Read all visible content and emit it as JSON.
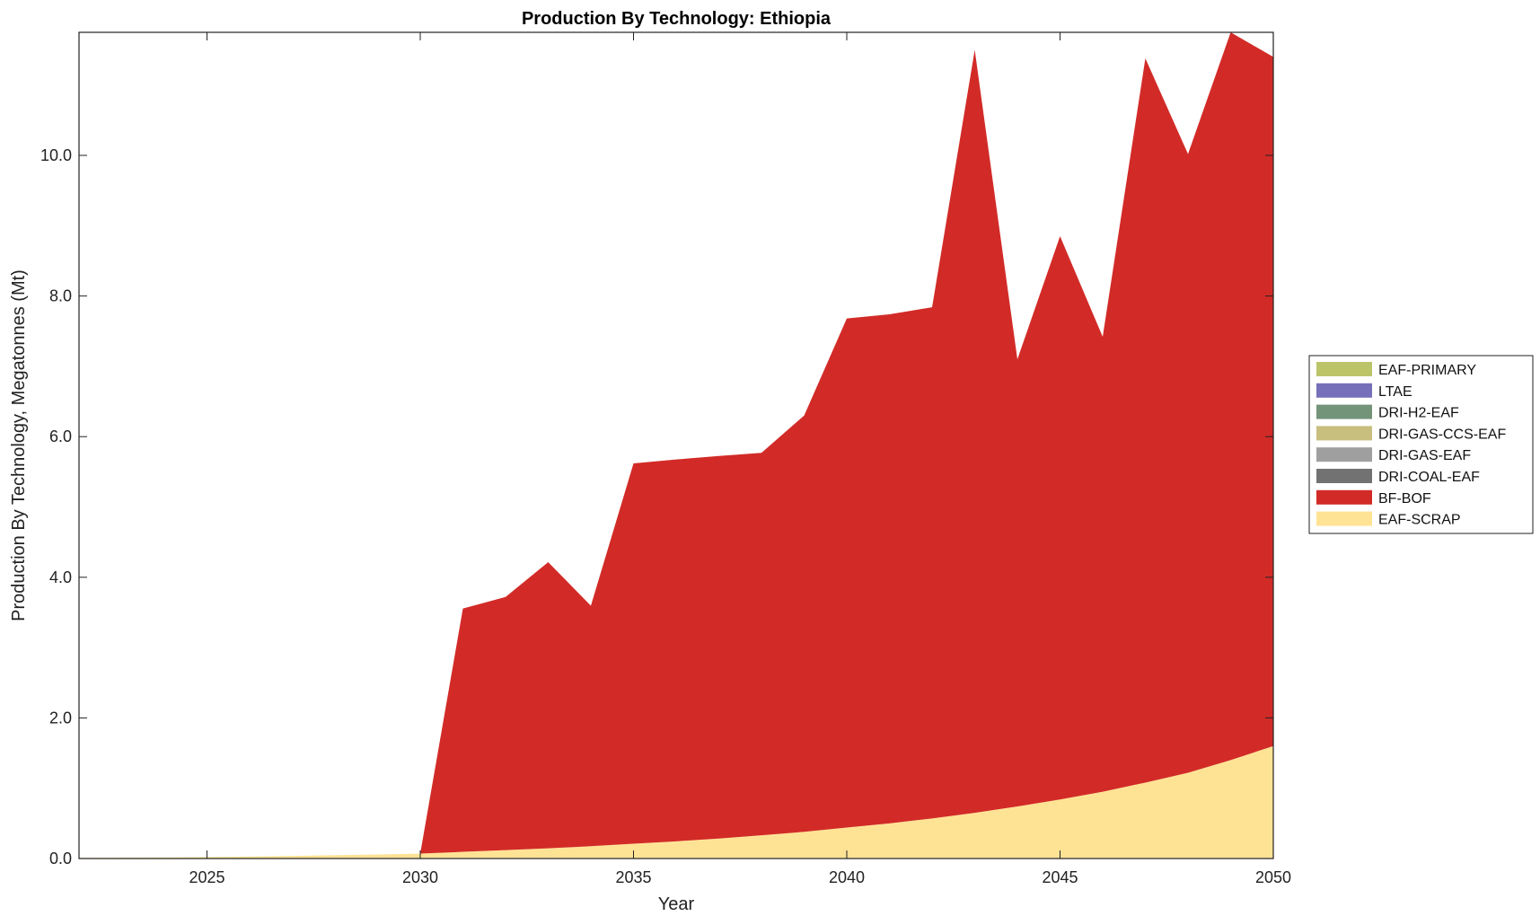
{
  "chart_data": {
    "type": "area",
    "title": "Production By Technology: Ethiopia",
    "xlabel": "Year",
    "ylabel": "Production By Technology, Megatonnes (Mt)",
    "xlim": [
      2022,
      2050
    ],
    "ylim": [
      0,
      11.75
    ],
    "xticks": [
      2025,
      2030,
      2035,
      2040,
      2045,
      2050
    ],
    "yticks": [
      0,
      2,
      4,
      6,
      8,
      10
    ],
    "ytick_labels": [
      "0.0",
      "2.0",
      "4.0",
      "6.0",
      "8.0",
      "10.0"
    ],
    "grid": false,
    "legend_position": "right",
    "x": [
      2022,
      2023,
      2024,
      2025,
      2026,
      2027,
      2028,
      2029,
      2030,
      2031,
      2032,
      2033,
      2034,
      2035,
      2036,
      2037,
      2038,
      2039,
      2040,
      2041,
      2042,
      2043,
      2044,
      2045,
      2046,
      2047,
      2048,
      2049,
      2050
    ],
    "series": [
      {
        "name": "EAF-SCRAP",
        "color": "#FFE395",
        "values": [
          0.01,
          0.012,
          0.015,
          0.02,
          0.028,
          0.037,
          0.048,
          0.058,
          0.07,
          0.095,
          0.12,
          0.145,
          0.175,
          0.21,
          0.245,
          0.285,
          0.33,
          0.38,
          0.44,
          0.5,
          0.57,
          0.65,
          0.74,
          0.84,
          0.95,
          1.08,
          1.22,
          1.4,
          1.6
        ]
      },
      {
        "name": "BF-BOF",
        "color": "#D22B27",
        "values": [
          0,
          0,
          0,
          0,
          0,
          0,
          0,
          0,
          0,
          3.46,
          3.6,
          4.07,
          3.42,
          5.41,
          5.43,
          5.44,
          5.44,
          5.92,
          7.24,
          7.24,
          7.27,
          10.85,
          6.36,
          8.01,
          6.47,
          10.3,
          8.8,
          10.35,
          9.8
        ]
      },
      {
        "name": "DRI-COAL-EAF",
        "color": "#727272",
        "values": [
          0,
          0,
          0,
          0,
          0,
          0,
          0,
          0,
          0,
          0,
          0,
          0,
          0,
          0,
          0,
          0,
          0,
          0,
          0,
          0,
          0,
          0,
          0,
          0,
          0,
          0,
          0,
          0,
          0
        ]
      },
      {
        "name": "DRI-GAS-EAF",
        "color": "#9F9F9F",
        "values": [
          0,
          0,
          0,
          0,
          0,
          0,
          0,
          0,
          0,
          0,
          0,
          0,
          0,
          0,
          0,
          0,
          0,
          0,
          0,
          0,
          0,
          0,
          0,
          0,
          0,
          0,
          0,
          0,
          0
        ]
      },
      {
        "name": "DRI-GAS-CCS-EAF",
        "color": "#C8BE7E",
        "values": [
          0,
          0,
          0,
          0,
          0,
          0,
          0,
          0,
          0,
          0,
          0,
          0,
          0,
          0,
          0,
          0,
          0,
          0,
          0,
          0,
          0,
          0,
          0,
          0,
          0,
          0,
          0,
          0,
          0
        ]
      },
      {
        "name": "DRI-H2-EAF",
        "color": "#74947A",
        "values": [
          0,
          0,
          0,
          0,
          0,
          0,
          0,
          0,
          0,
          0,
          0,
          0,
          0,
          0,
          0,
          0,
          0,
          0,
          0,
          0,
          0,
          0,
          0,
          0,
          0,
          0,
          0,
          0,
          0
        ]
      },
      {
        "name": "LTAE",
        "color": "#7570B9",
        "values": [
          0,
          0,
          0,
          0,
          0,
          0,
          0,
          0,
          0,
          0,
          0,
          0,
          0,
          0,
          0,
          0,
          0,
          0,
          0,
          0,
          0,
          0,
          0,
          0,
          0,
          0,
          0,
          0,
          0
        ]
      },
      {
        "name": "EAF-PRIMARY",
        "color": "#BCC46A",
        "values": [
          0,
          0,
          0,
          0,
          0,
          0,
          0,
          0,
          0,
          0,
          0,
          0,
          0,
          0,
          0,
          0,
          0,
          0,
          0,
          0,
          0,
          0,
          0,
          0,
          0,
          0,
          0,
          0,
          0
        ]
      }
    ],
    "legend_order": [
      "EAF-PRIMARY",
      "LTAE",
      "DRI-H2-EAF",
      "DRI-GAS-CCS-EAF",
      "DRI-GAS-EAF",
      "DRI-COAL-EAF",
      "BF-BOF",
      "EAF-SCRAP"
    ]
  }
}
